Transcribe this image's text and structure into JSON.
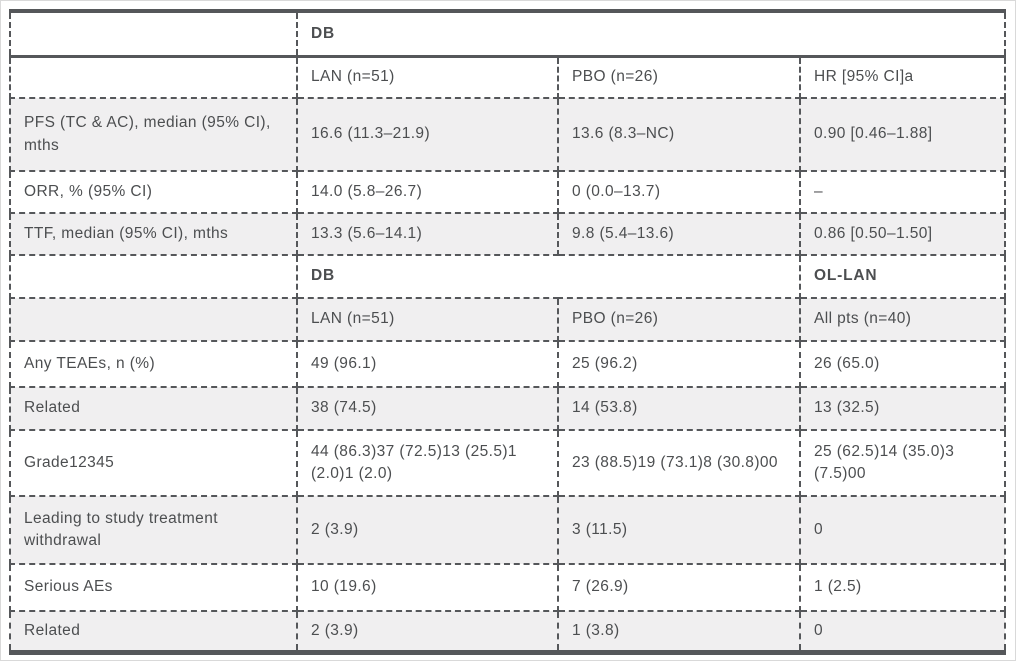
{
  "colors": {
    "border": "#55575a",
    "text": "#4c4e50",
    "row_stripe": "#f0eff0",
    "background": "#ffffff"
  },
  "table": {
    "rows": [
      {
        "cells": [
          "",
          "DB"
        ]
      },
      {
        "cells": [
          "",
          "LAN (n=51)",
          "PBO (n=26)",
          "HR [95% CI]a"
        ]
      },
      {
        "cells": [
          "PFS (TC & AC), median (95% CI), mths",
          "16.6 (11.3–21.9)",
          "13.6 (8.3–NC)",
          "0.90 [0.46–1.88]"
        ]
      },
      {
        "cells": [
          "ORR, % (95% CI)",
          "14.0 (5.8–26.7)",
          "0 (0.0–13.7)",
          "–"
        ]
      },
      {
        "cells": [
          "TTF, median (95% CI), mths",
          "13.3 (5.6–14.1)",
          "9.8 (5.4–13.6)",
          "0.86 [0.50–1.50]"
        ]
      },
      {
        "cells": [
          "",
          "DB",
          "OL-LAN"
        ]
      },
      {
        "cells": [
          "",
          "LAN (n=51)",
          "PBO (n=26)",
          "All pts (n=40)"
        ]
      },
      {
        "cells": [
          "Any TEAEs, n (%)",
          "49 (96.1)",
          "25 (96.2)",
          "26 (65.0)"
        ]
      },
      {
        "cells": [
          "Related",
          "38 (74.5)",
          "14 (53.8)",
          "13 (32.5)"
        ]
      },
      {
        "cells": [
          "Grade12345",
          "44 (86.3)37 (72.5)13 (25.5)1 (2.0)1 (2.0)",
          "23 (88.5)19 (73.1)8 (30.8)00",
          "25 (62.5)14 (35.0)3 (7.5)00"
        ]
      },
      {
        "cells": [
          "Leading to study treatment withdrawal",
          "2 (3.9)",
          "3 (11.5)",
          "0"
        ]
      },
      {
        "cells": [
          "Serious AEs",
          "10 (19.6)",
          "7 (26.9)",
          "1 (2.5)"
        ]
      },
      {
        "cells": [
          "Related",
          "2 (3.9)",
          "1 (3.8)",
          "0"
        ]
      }
    ]
  }
}
